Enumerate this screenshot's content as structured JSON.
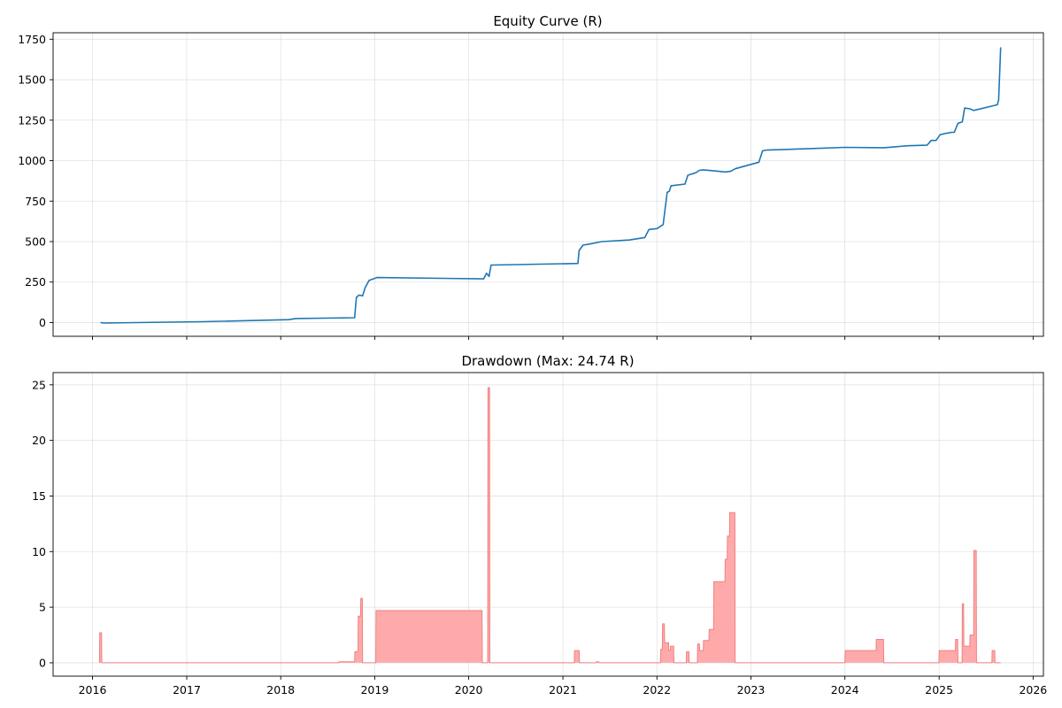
{
  "chart_data": [
    {
      "type": "line",
      "title": "Equity Curve (R)",
      "xlabel": "",
      "ylabel": "",
      "x_axis": "date",
      "xlim": [
        "2015-08-01",
        "2026-02-10"
      ],
      "ylim": [
        -85,
        1790
      ],
      "grid": true,
      "yticks": [
        0,
        250,
        500,
        750,
        1000,
        1250,
        1500,
        1750
      ],
      "xticks": [
        "2016",
        "2017",
        "2018",
        "2019",
        "2020",
        "2021",
        "2022",
        "2023",
        "2024",
        "2025",
        "2026"
      ],
      "color": "#1f77b4",
      "series": [
        {
          "x": [
            "2016-02-01",
            "2016-02-15",
            "2017-03-01",
            "2018-02-01",
            "2018-03-01",
            "2018-10-15",
            "2018-10-22",
            "2018-11-01",
            "2018-11-15",
            "2018-11-25",
            "2018-12-10",
            "2019-01-10",
            "2020-02-28",
            "2020-03-10",
            "2020-03-20",
            "2020-03-28",
            "2021-02-28",
            "2021-03-05",
            "2021-03-20",
            "2021-04-15",
            "2021-06-01",
            "2021-09-15",
            "2021-11-15",
            "2021-12-01",
            "2022-01-01",
            "2022-01-25",
            "2022-02-10",
            "2022-02-18",
            "2022-02-25",
            "2022-04-20",
            "2022-05-01",
            "2022-06-01",
            "2022-06-15",
            "2022-07-01",
            "2022-09-25",
            "2022-10-15",
            "2022-11-01",
            "2023-02-01",
            "2023-02-15",
            "2023-03-01",
            "2023-09-01",
            "2023-12-31",
            "2024-06-01",
            "2024-09-01",
            "2024-11-15",
            "2024-12-01",
            "2024-12-20",
            "2025-01-05",
            "2025-02-01",
            "2025-02-20",
            "2025-03-01",
            "2025-03-15",
            "2025-04-01",
            "2025-04-10",
            "2025-05-01",
            "2025-05-15",
            "2025-08-15",
            "2025-08-20",
            "2025-08-28"
          ],
          "y": [
            0,
            -3,
            5,
            18,
            25,
            30,
            155,
            170,
            165,
            215,
            260,
            278,
            270,
            305,
            285,
            355,
            365,
            445,
            478,
            485,
            500,
            510,
            525,
            575,
            580,
            605,
            805,
            810,
            845,
            855,
            910,
            925,
            940,
            943,
            930,
            935,
            950,
            990,
            1060,
            1065,
            1075,
            1082,
            1080,
            1092,
            1095,
            1125,
            1125,
            1160,
            1170,
            1175,
            1175,
            1230,
            1240,
            1325,
            1320,
            1310,
            1345,
            1375,
            1700
          ]
        }
      ]
    },
    {
      "type": "area",
      "title": "Drawdown (Max: 24.74 R)",
      "xlabel": "",
      "ylabel": "",
      "x_axis": "date",
      "xlim": [
        "2015-08-01",
        "2026-02-10"
      ],
      "ylim": [
        -1.2,
        26.1
      ],
      "grid": true,
      "yticks": [
        0,
        5,
        10,
        15,
        20,
        25
      ],
      "xticks": [
        "2016",
        "2017",
        "2018",
        "2019",
        "2020",
        "2021",
        "2022",
        "2023",
        "2024",
        "2025",
        "2026"
      ],
      "fill_color": "#ffaaaa",
      "line_color": "#f08080",
      "series": [
        {
          "x": [
            "2016-01-28",
            "2016-01-29",
            "2016-02-05",
            "2016-02-06",
            "2018-08-14",
            "2018-08-15",
            "2018-10-15",
            "2018-10-16",
            "2018-10-28",
            "2018-10-29",
            "2018-11-07",
            "2018-11-08",
            "2018-11-14",
            "2018-11-15",
            "2018-11-21",
            "2018-11-22",
            "2019-01-05",
            "2019-01-06",
            "2020-02-22",
            "2020-02-23",
            "2020-03-15",
            "2020-03-16",
            "2020-03-22",
            "2020-03-23",
            "2021-02-14",
            "2021-02-15",
            "2021-03-05",
            "2021-03-06",
            "2021-05-10",
            "2021-05-11",
            "2021-05-20",
            "2021-05-21",
            "2022-01-15",
            "2022-01-16",
            "2022-01-22",
            "2022-01-23",
            "2022-01-30",
            "2022-01-31",
            "2022-02-15",
            "2022-02-16",
            "2022-02-22",
            "2022-02-23",
            "2022-03-07",
            "2022-03-08",
            "2022-03-15",
            "2022-03-16",
            "2022-04-25",
            "2022-04-26",
            "2022-05-05",
            "2022-05-06",
            "2022-06-07",
            "2022-06-08",
            "2022-06-15",
            "2022-06-16",
            "2022-06-30",
            "2022-07-01",
            "2022-07-22",
            "2022-07-23",
            "2022-08-09",
            "2022-08-10",
            "2022-09-22",
            "2022-09-23",
            "2022-10-01",
            "2022-10-02",
            "2022-10-10",
            "2022-10-11",
            "2022-10-31",
            "2022-11-01",
            "2024-01-01",
            "2024-01-02",
            "2024-05-01",
            "2024-05-02",
            "2024-05-30",
            "2024-05-31",
            "2024-12-31",
            "2025-01-01",
            "2025-01-15",
            "2025-01-16",
            "2025-03-05",
            "2025-03-06",
            "2025-03-14",
            "2025-03-15",
            "2025-03-31",
            "2025-04-01",
            "2025-04-06",
            "2025-04-07",
            "2025-04-30",
            "2025-05-01",
            "2025-05-15",
            "2025-05-16",
            "2025-05-25",
            "2025-05-26",
            "2025-07-25",
            "2025-07-26",
            "2025-08-05",
            "2025-08-06",
            "2025-08-28"
          ],
          "y": [
            0,
            2.7,
            2.7,
            0,
            0,
            0.1,
            0.1,
            1.0,
            1.0,
            4.2,
            4.2,
            5.8,
            5.8,
            0,
            0,
            0,
            0,
            4.7,
            4.7,
            0,
            0,
            24.74,
            24.74,
            0,
            0,
            1.1,
            1.1,
            0,
            0,
            0.1,
            0.1,
            0,
            0,
            1.2,
            1.2,
            3.5,
            3.5,
            1.8,
            1.8,
            1.1,
            1.1,
            1.5,
            1.5,
            0,
            0,
            0,
            0,
            1.0,
            1.0,
            0,
            0,
            1.7,
            1.7,
            1.1,
            1.1,
            2.0,
            2.0,
            3.0,
            3.0,
            7.3,
            7.3,
            9.3,
            9.3,
            11.4,
            11.4,
            13.5,
            13.5,
            0,
            0,
            1.1,
            1.1,
            2.1,
            2.1,
            0,
            0,
            1.1,
            1.1,
            1.1,
            1.1,
            2.1,
            2.1,
            0,
            0,
            5.3,
            5.3,
            1.5,
            1.5,
            2.5,
            2.5,
            10.1,
            10.1,
            0,
            0,
            1.1,
            1.1,
            0,
            0
          ]
        }
      ]
    }
  ]
}
